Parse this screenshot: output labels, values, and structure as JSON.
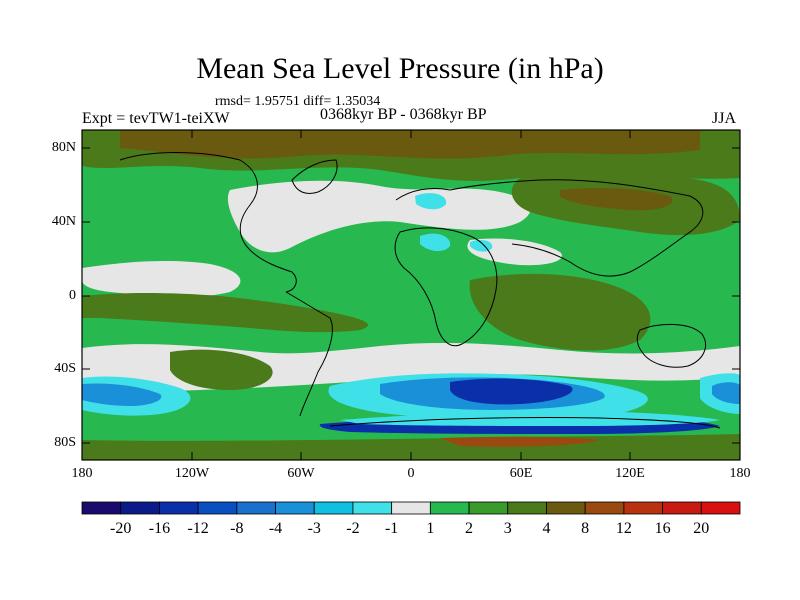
{
  "title": "Mean Sea Level Pressure (in hPa)",
  "stats": "rmsd= 1.95751  diff= 1.35034",
  "experiment": "Expt = tevTW1-teiXW",
  "period": "0368kyr BP - 0368kyr BP",
  "season": "JJA",
  "map": {
    "lat_labels": [
      "80N",
      "40N",
      "0",
      "40S",
      "80S"
    ],
    "lon_labels": [
      "180",
      "120W",
      "60W",
      "0",
      "60E",
      "120E",
      "180"
    ]
  },
  "colorbar": {
    "labels": [
      "-20",
      "-16",
      "-12",
      "-8",
      "-4",
      "-3",
      "-2",
      "-1",
      "1",
      "2",
      "3",
      "4",
      "8",
      "12",
      "16",
      "20"
    ],
    "colors": [
      "#1a0a6e",
      "#0a1a8a",
      "#0a2fa8",
      "#0a4fc0",
      "#1a70cc",
      "#1a90d8",
      "#10c0e0",
      "#40e0e8",
      "#e6e6e6",
      "#28b850",
      "#3a9a2a",
      "#4a7a1a",
      "#6a5a10",
      "#9a4a10",
      "#b83210",
      "#c81a10",
      "#d81010"
    ]
  },
  "chart_data": {
    "type": "heatmap",
    "title": "Mean Sea Level Pressure (in hPa)",
    "subtitle": "rmsd= 1.95751  diff= 1.35034",
    "variable": "Mean sea level pressure difference (hPa)",
    "season": "JJA",
    "x_ticks": [
      "180",
      "120W",
      "60W",
      "0",
      "60E",
      "120E",
      "180"
    ],
    "y_ticks": [
      "80N",
      "40N",
      "0",
      "40S",
      "80S"
    ],
    "xlim": [
      -180,
      180
    ],
    "ylim": [
      -90,
      90
    ],
    "contour_levels": [
      -20,
      -16,
      -12,
      -8,
      -4,
      -3,
      -2,
      -1,
      1,
      2,
      3,
      4,
      8,
      12,
      16,
      20
    ],
    "rmsd": 1.95751,
    "diff": 1.35034
  }
}
